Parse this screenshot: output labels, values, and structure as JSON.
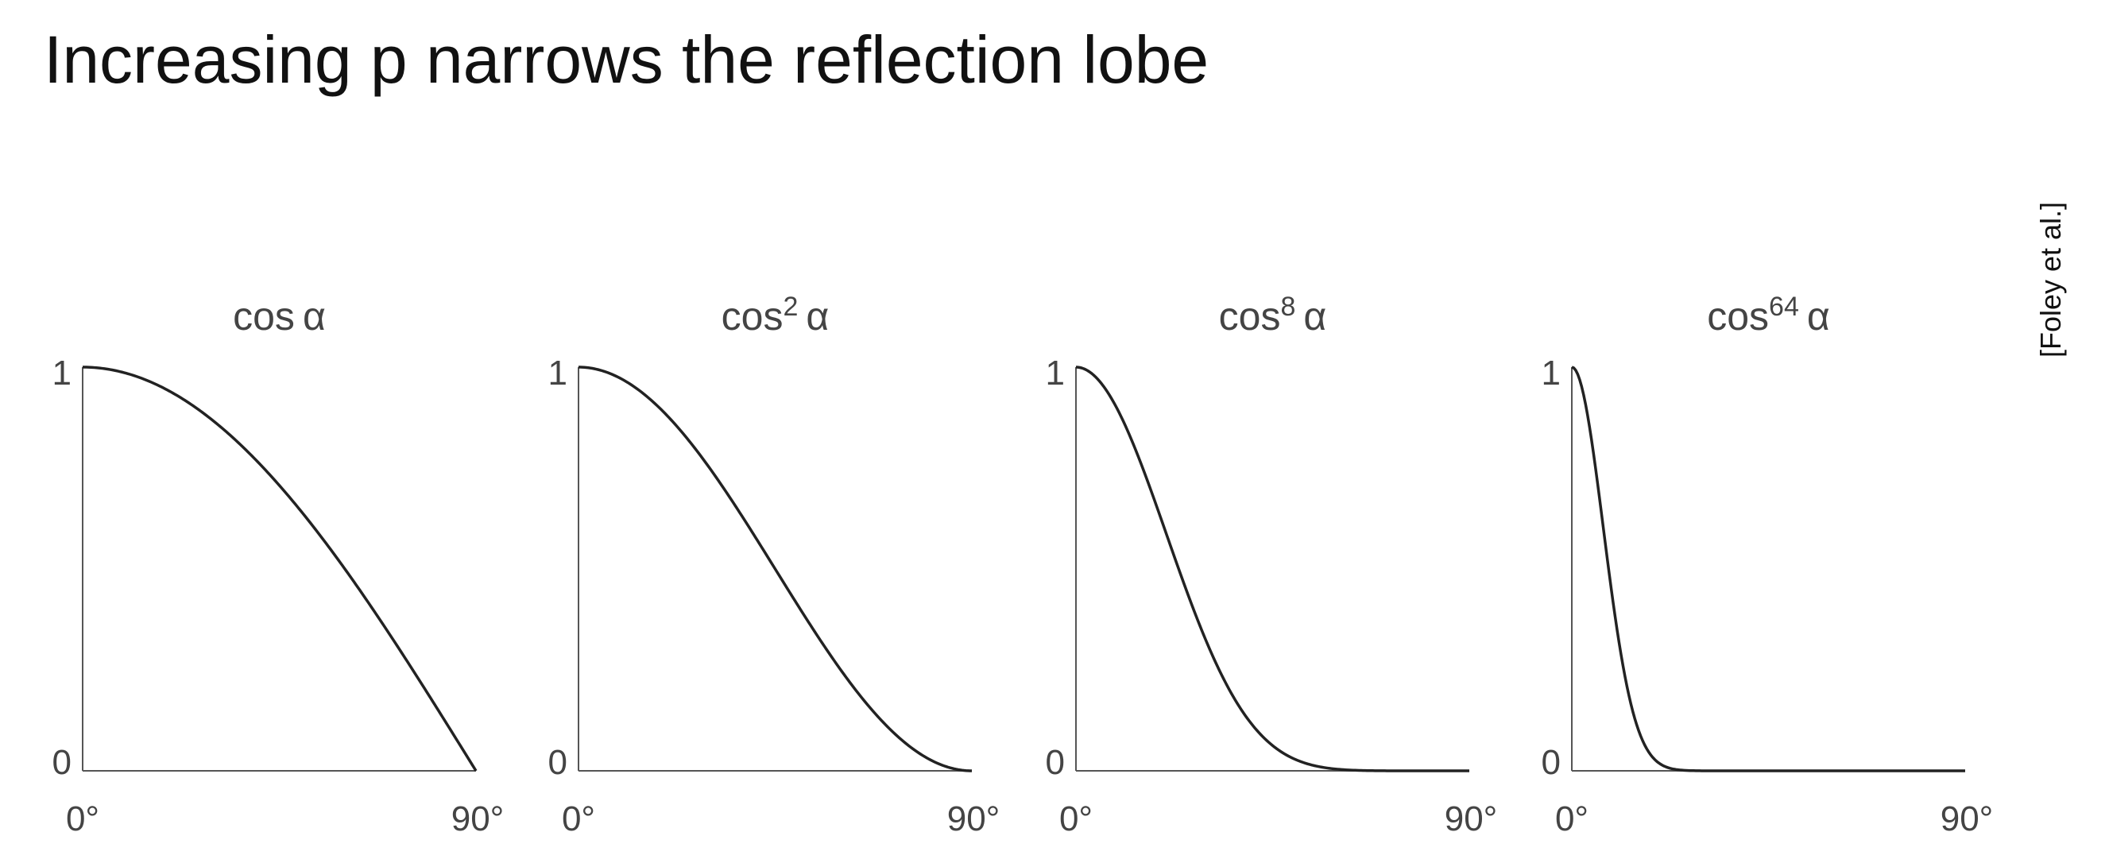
{
  "slide": {
    "title": "Increasing p narrows the reflection lobe",
    "citation": "[Foley et al.]"
  },
  "colors": {
    "curve": "#222222",
    "axis": "#555555",
    "text": "#444444"
  },
  "chart_data": [
    {
      "type": "line",
      "title_base": "cos",
      "title_exp": "",
      "title_var": "α",
      "exponent": 1,
      "y_ticks": [
        "1",
        "0"
      ],
      "x_ticks": [
        "0°",
        "90°"
      ],
      "xlim": [
        0,
        90
      ],
      "ylim": [
        0,
        1
      ],
      "x": [
        0,
        10,
        20,
        30,
        40,
        50,
        60,
        70,
        80,
        90
      ],
      "y": [
        1.0,
        0.985,
        0.94,
        0.866,
        0.766,
        0.643,
        0.5,
        0.342,
        0.174,
        0.0
      ]
    },
    {
      "type": "line",
      "title_base": "cos",
      "title_exp": "2",
      "title_var": "α",
      "exponent": 2,
      "y_ticks": [
        "1",
        "0"
      ],
      "x_ticks": [
        "0°",
        "90°"
      ],
      "xlim": [
        0,
        90
      ],
      "ylim": [
        0,
        1
      ],
      "x": [
        0,
        10,
        20,
        30,
        40,
        50,
        60,
        70,
        80,
        90
      ],
      "y": [
        1.0,
        0.97,
        0.883,
        0.75,
        0.587,
        0.413,
        0.25,
        0.117,
        0.03,
        0.0
      ]
    },
    {
      "type": "line",
      "title_base": "cos",
      "title_exp": "8",
      "title_var": "α",
      "exponent": 8,
      "y_ticks": [
        "1",
        "0"
      ],
      "x_ticks": [
        "0°",
        "90°"
      ],
      "xlim": [
        0,
        90
      ],
      "ylim": [
        0,
        1
      ],
      "x": [
        0,
        10,
        20,
        30,
        40,
        50,
        60,
        70,
        80,
        90
      ],
      "y": [
        1.0,
        0.885,
        0.608,
        0.316,
        0.119,
        0.029,
        0.004,
        0.0002,
        0.0,
        0.0
      ]
    },
    {
      "type": "line",
      "title_base": "cos",
      "title_exp": "64",
      "title_var": "α",
      "exponent": 64,
      "y_ticks": [
        "1",
        "0"
      ],
      "x_ticks": [
        "0°",
        "90°"
      ],
      "xlim": [
        0,
        90
      ],
      "ylim": [
        0,
        1
      ],
      "x": [
        0,
        5,
        10,
        15,
        20,
        30,
        45,
        60,
        90
      ],
      "y": [
        1.0,
        0.784,
        0.378,
        0.108,
        0.019,
        0.0001,
        0.0,
        0.0,
        0.0
      ]
    }
  ]
}
